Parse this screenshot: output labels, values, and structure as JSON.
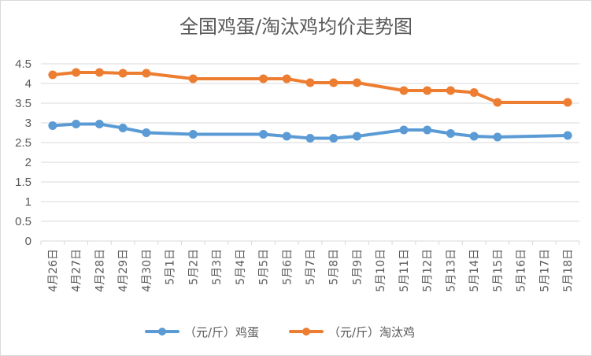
{
  "chart_data": {
    "type": "line",
    "title": "全国鸡蛋/淘汰鸡均价走势图",
    "categories": [
      "4月26日",
      "4月27日",
      "4月28日",
      "4月29日",
      "4月30日",
      "5月1日",
      "5月2日",
      "5月3日",
      "5月4日",
      "5月5日",
      "5月6日",
      "5月7日",
      "5月8日",
      "5月9日",
      "5月10日",
      "5月11日",
      "5月12日",
      "5月13日",
      "5月14日",
      "5月15日",
      "5月16日",
      "5月17日",
      "5月18日"
    ],
    "ylim": [
      0,
      4.5
    ],
    "yticks": [
      "0",
      "0.5",
      "1",
      "1.5",
      "2",
      "2.5",
      "3",
      "3.5",
      "4",
      "4.5"
    ],
    "grid": true,
    "legend_position": "bottom",
    "series": [
      {
        "name": "（元/斤）鸡蛋",
        "color": "#5b9bd5",
        "values": [
          2.93,
          2.97,
          2.97,
          2.87,
          2.75,
          null,
          2.71,
          null,
          null,
          2.71,
          2.66,
          2.61,
          2.61,
          2.66,
          null,
          2.82,
          2.82,
          2.73,
          2.66,
          2.64,
          null,
          null,
          2.68
        ]
      },
      {
        "name": "（元/斤）淘汰鸡",
        "color": "#ed7d31",
        "values": [
          4.22,
          4.28,
          4.28,
          4.26,
          4.26,
          null,
          4.12,
          null,
          null,
          4.12,
          4.12,
          4.02,
          4.02,
          4.02,
          null,
          3.82,
          3.82,
          3.82,
          3.77,
          3.52,
          null,
          null,
          3.52
        ]
      }
    ]
  }
}
